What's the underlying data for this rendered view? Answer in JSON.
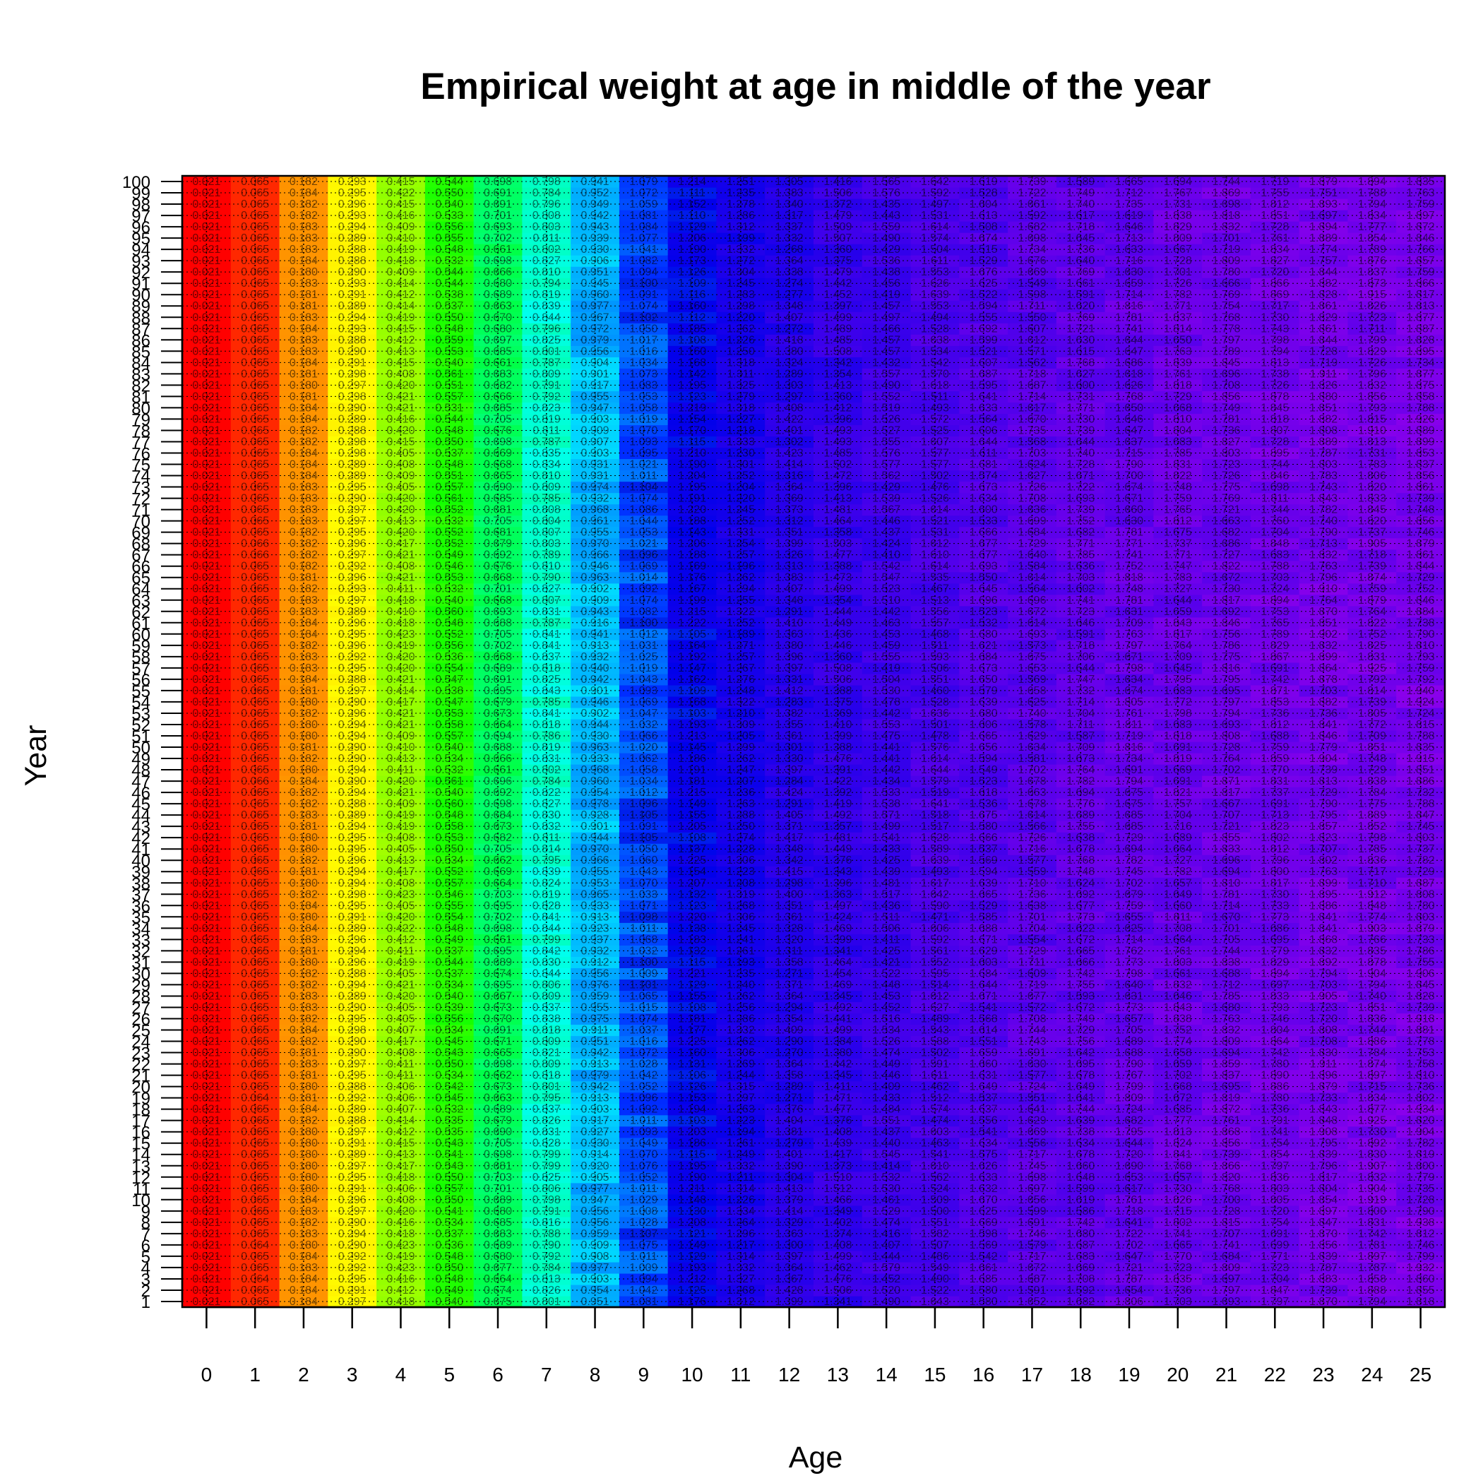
{
  "chart_data": {
    "type": "heatmap",
    "title": "Empirical weight at age in middle of the year",
    "xlabel": "Age",
    "ylabel": "Year",
    "x_ticks": [
      0,
      1,
      2,
      3,
      4,
      5,
      6,
      7,
      8,
      9,
      10,
      11,
      12,
      13,
      14,
      15,
      16,
      17,
      18,
      19,
      20,
      21,
      22,
      23,
      24,
      25
    ],
    "y_ticks": [
      1,
      2,
      3,
      4,
      5,
      6,
      7,
      8,
      9,
      10,
      11,
      12,
      13,
      14,
      15,
      16,
      17,
      18,
      19,
      20,
      21,
      22,
      23,
      24,
      25,
      26,
      27,
      28,
      29,
      30,
      31,
      32,
      33,
      34,
      35,
      36,
      37,
      38,
      39,
      40,
      41,
      42,
      43,
      44,
      45,
      46,
      47,
      48,
      49,
      50,
      51,
      52,
      53,
      54,
      55,
      56,
      57,
      58,
      59,
      60,
      61,
      62,
      63,
      64,
      65,
      66,
      67,
      68,
      69,
      70,
      71,
      72,
      73,
      74,
      75,
      76,
      77,
      78,
      79,
      80,
      81,
      82,
      83,
      84,
      85,
      86,
      87,
      88,
      89,
      90,
      91,
      92,
      93,
      94,
      95,
      96,
      97,
      98,
      99,
      100
    ],
    "xlim": [
      0,
      25
    ],
    "ylim": [
      1,
      100
    ],
    "colormap": "rainbow (red = low weight, violet = high weight)",
    "grid": true,
    "legend": "none",
    "mean_weight_by_age": [
      0.021,
      0.065,
      0.182,
      0.293,
      0.414,
      0.546,
      0.683,
      0.815,
      0.941,
      1.058,
      1.165,
      1.262,
      1.349,
      1.426,
      1.494,
      1.553,
      1.604,
      1.648,
      1.686,
      1.718,
      1.745,
      1.768,
      1.788,
      1.804,
      1.818,
      1.83
    ],
    "series": [],
    "color_stops": [
      "#ff0000",
      "#ff8000",
      "#ffff00",
      "#00ff00",
      "#00ffff",
      "#0000ff",
      "#ff00ff"
    ]
  }
}
